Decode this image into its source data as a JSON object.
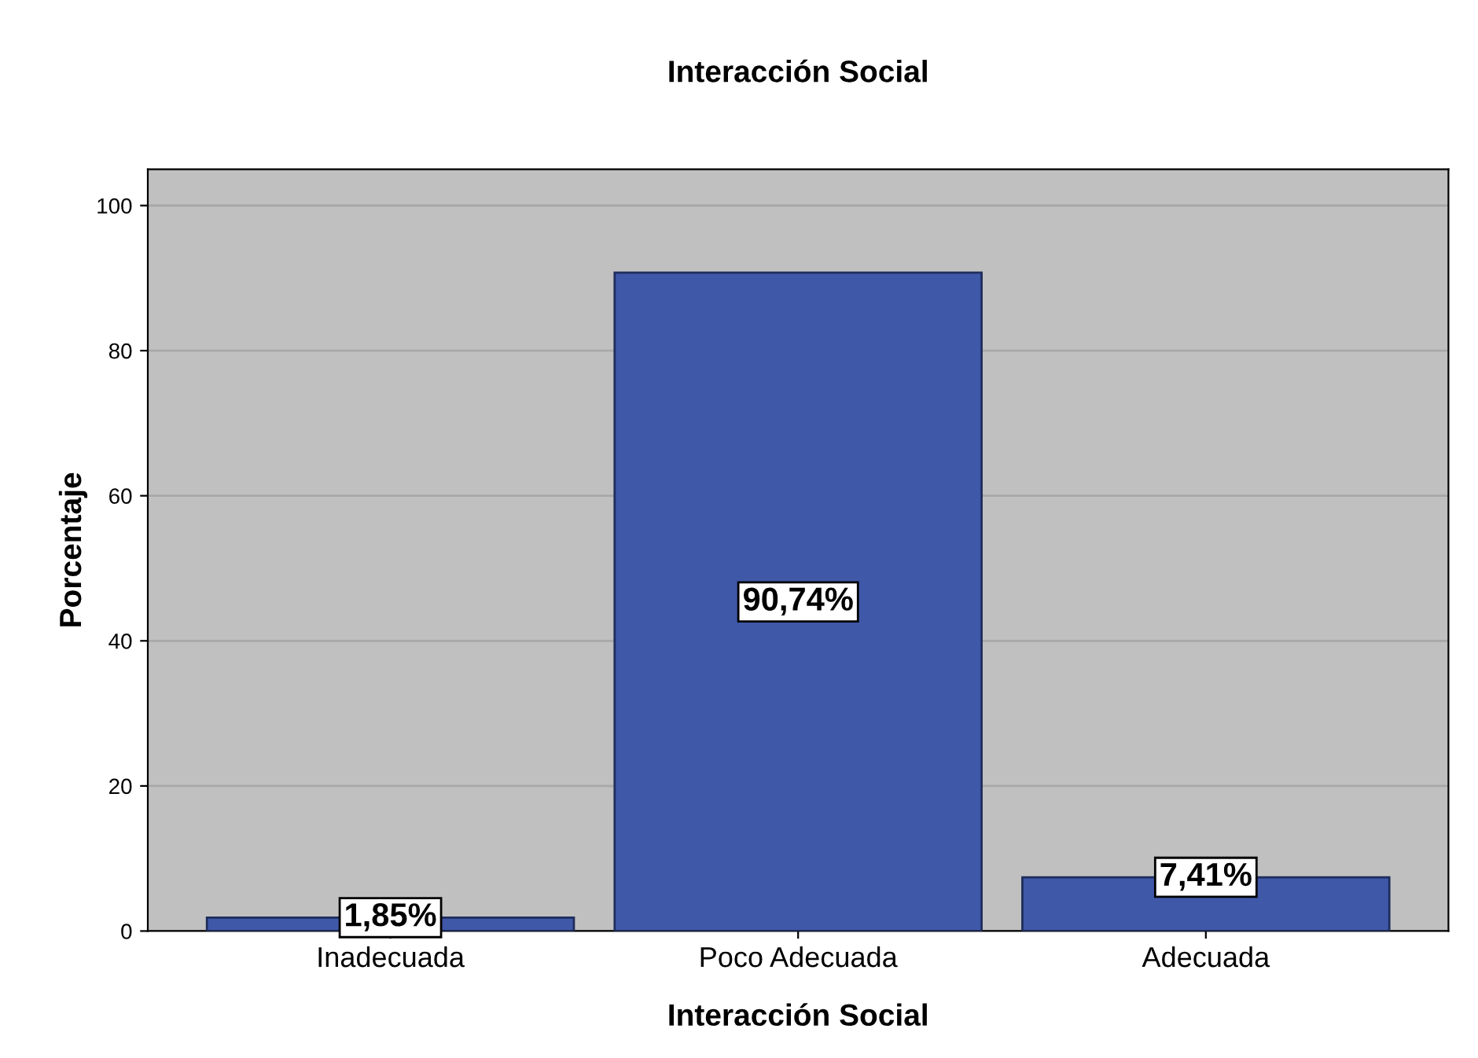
{
  "chart_data": {
    "type": "bar",
    "title": "Interacción Social",
    "xlabel": "Interacción Social",
    "ylabel": "Porcentaje",
    "categories": [
      "Inadecuada",
      "Poco Adecuada",
      "Adecuada"
    ],
    "values": [
      1.85,
      90.74,
      7.41
    ],
    "value_labels": [
      "1,85%",
      "90,74%",
      "7,41%"
    ],
    "color": "#3f58a8",
    "ylim": [
      0,
      105
    ],
    "yticks": [
      0,
      20,
      40,
      60,
      80,
      100
    ],
    "grid": "y"
  }
}
